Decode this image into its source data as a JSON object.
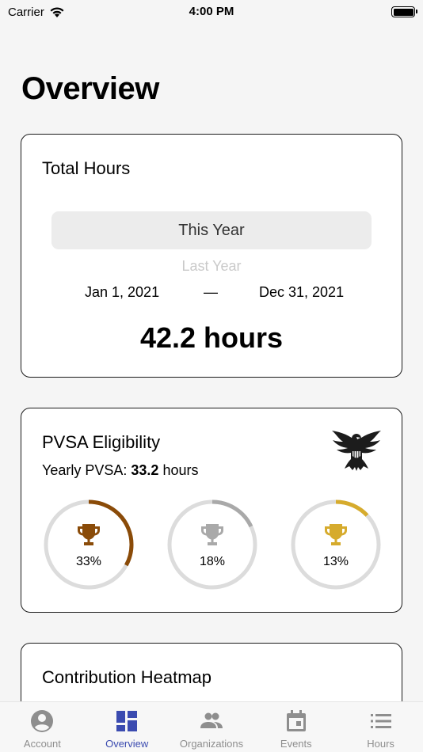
{
  "status_bar": {
    "carrier": "Carrier",
    "time": "4:00 PM"
  },
  "page_title": "Overview",
  "total_hours": {
    "title": "Total Hours",
    "picker_selected": "This Year",
    "picker_next": "Last Year",
    "start_date": "Jan 1, 2021",
    "dash": "—",
    "end_date": "Dec 31, 2021",
    "total": "42.2 hours"
  },
  "pvsa": {
    "title": "PVSA Eligibility",
    "yearly_label": "Yearly PVSA: ",
    "yearly_value": "33.2",
    "yearly_unit": " hours",
    "awards": [
      {
        "name": "bronze",
        "percent_label": "33%",
        "progress": 0.33,
        "color": "#8a4b08"
      },
      {
        "name": "silver",
        "percent_label": "18%",
        "progress": 0.18,
        "color": "#a9a9a9"
      },
      {
        "name": "gold",
        "percent_label": "13%",
        "progress": 0.13,
        "color": "#d6ab2d"
      }
    ]
  },
  "heatmap": {
    "title": "Contribution Heatmap"
  },
  "tabs": [
    {
      "label": "Account",
      "icon": "account-icon",
      "active": false
    },
    {
      "label": "Overview",
      "icon": "dashboard-icon",
      "active": true
    },
    {
      "label": "Organizations",
      "icon": "people-icon",
      "active": false
    },
    {
      "label": "Events",
      "icon": "calendar-icon",
      "active": false
    },
    {
      "label": "Hours",
      "icon": "list-icon",
      "active": false
    }
  ],
  "colors": {
    "accent": "#3b4bb0",
    "inactive": "#8e8e8e",
    "ring_track": "#dcdcdc"
  }
}
